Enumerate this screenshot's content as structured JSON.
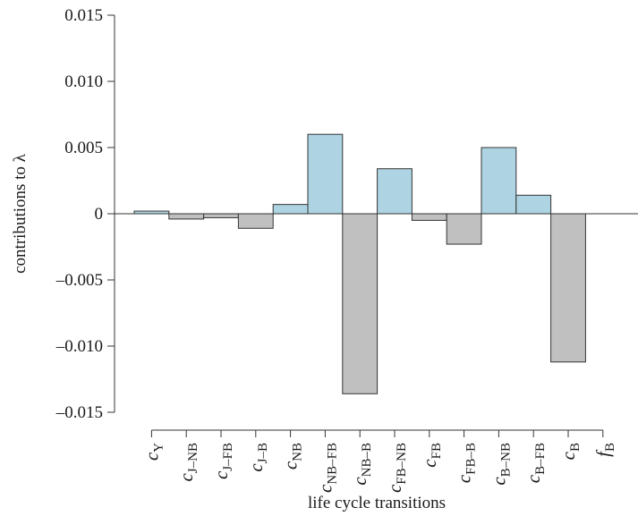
{
  "chart_data": {
    "type": "bar",
    "categories": [
      {
        "main": "c",
        "sub": "Y"
      },
      {
        "main": "c",
        "sub": "J–NB"
      },
      {
        "main": "c",
        "sub": "J–FB"
      },
      {
        "main": "c",
        "sub": "J–B"
      },
      {
        "main": "c",
        "sub": "NB"
      },
      {
        "main": "c",
        "sub": "NB–FB"
      },
      {
        "main": "c",
        "sub": "NB–B"
      },
      {
        "main": "c",
        "sub": "FB–NB"
      },
      {
        "main": "c",
        "sub": "FB"
      },
      {
        "main": "c",
        "sub": "FB–B"
      },
      {
        "main": "c",
        "sub": "B–NB"
      },
      {
        "main": "c",
        "sub": "B–FB"
      },
      {
        "main": "c",
        "sub": "B"
      },
      {
        "main": "f",
        "sub": "B"
      }
    ],
    "values": [
      0.0002,
      -0.0004,
      -0.0003,
      -0.0011,
      0.0007,
      0.006,
      -0.0136,
      0.0034,
      -0.0005,
      -0.0023,
      0.005,
      0.0014,
      -0.0112,
      0
    ],
    "ylim": [
      -0.015,
      0.015
    ],
    "yticks": [
      "0.015",
      "0.010",
      "0.005",
      "0",
      "–0.005",
      "–0.010",
      "–0.015"
    ],
    "ytick_values": [
      0.015,
      0.01,
      0.005,
      0,
      -0.005,
      -0.01,
      -0.015
    ],
    "ylabel": "contributions to λ",
    "xlabel": "life cycle transitions",
    "colors": {
      "positive": "#aed4e3",
      "negative": "#c0c0c0",
      "stroke": "#333333"
    },
    "grid": false
  }
}
